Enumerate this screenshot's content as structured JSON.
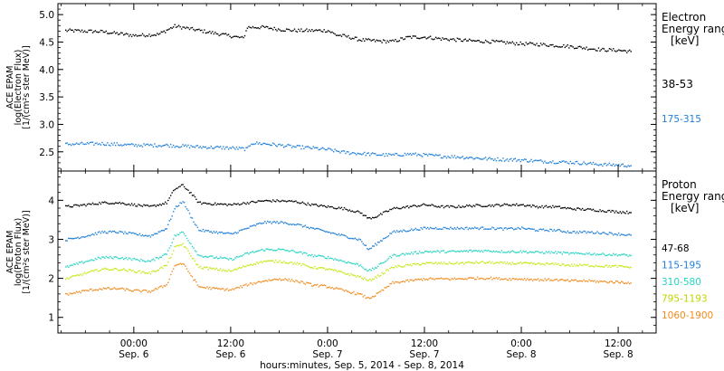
{
  "x_axis": {
    "title": "hours:minutes, Sep.  5, 2014 - Sep.  8, 2014",
    "ticks": [
      {
        "time": "00:00",
        "date": "Sep. 6",
        "hour": 24
      },
      {
        "time": "12:00",
        "date": "Sep. 6",
        "hour": 36
      },
      {
        "time": "0:00",
        "date": "Sep. 7",
        "hour": 48
      },
      {
        "time": "12:00",
        "date": "Sep. 7",
        "hour": 60
      },
      {
        "time": "0:00",
        "date": "Sep. 8",
        "hour": 72
      },
      {
        "time": "12:00",
        "date": "Sep. 8",
        "hour": 84
      }
    ],
    "xlim_hours": [
      14.6,
      88.7
    ]
  },
  "chart_data": [
    {
      "type": "scatter",
      "panel": "electron",
      "ylabel_lines": [
        "ACE EPAM",
        "log(Electron Flux)",
        "[1/(cm²s ster MeV)]"
      ],
      "ylim": [
        2.15,
        5.2
      ],
      "yticks": [
        "2.5",
        "3.0",
        "3.5",
        "4.0",
        "4.5",
        "5.0"
      ],
      "legend_title_lines": [
        "Electron",
        "Energy ranges",
        "[keV]"
      ],
      "x_units": "hours since Sep. 5, 2014 00:00",
      "series": [
        {
          "name": "38-53",
          "color": "#000000",
          "x": [
            15.5,
            20,
            24,
            27,
            29,
            31,
            34,
            36,
            37.5,
            38,
            40,
            42,
            44,
            46,
            48,
            49,
            50,
            52,
            54,
            56,
            58,
            60,
            62,
            64,
            66,
            68,
            70,
            72,
            74,
            76,
            78,
            80,
            82,
            84,
            85.5
          ],
          "y": [
            4.72,
            4.7,
            4.63,
            4.65,
            4.8,
            4.75,
            4.67,
            4.62,
            4.58,
            4.78,
            4.78,
            4.74,
            4.72,
            4.72,
            4.72,
            4.64,
            4.62,
            4.55,
            4.53,
            4.52,
            4.6,
            4.6,
            4.57,
            4.55,
            4.53,
            4.52,
            4.5,
            4.48,
            4.47,
            4.45,
            4.43,
            4.4,
            4.37,
            4.36,
            4.34
          ]
        },
        {
          "name": "175-315",
          "color": "#1f7fd9",
          "x": [
            15.5,
            20,
            24,
            28,
            32,
            36,
            38,
            38.5,
            40,
            42,
            44,
            46,
            48,
            50,
            52,
            54,
            56,
            58,
            60,
            62,
            64,
            66,
            68,
            70,
            72,
            74,
            76,
            78,
            80,
            82,
            84,
            85.5
          ],
          "y": [
            2.65,
            2.66,
            2.63,
            2.63,
            2.6,
            2.58,
            2.56,
            2.67,
            2.66,
            2.63,
            2.6,
            2.58,
            2.55,
            2.5,
            2.48,
            2.46,
            2.45,
            2.47,
            2.45,
            2.43,
            2.42,
            2.4,
            2.38,
            2.37,
            2.36,
            2.34,
            2.33,
            2.32,
            2.3,
            2.28,
            2.27,
            2.26
          ]
        }
      ]
    },
    {
      "type": "scatter",
      "panel": "proton",
      "ylabel_lines": [
        "ACE EPAM",
        "log(Proton Flux)",
        "[1/(cm²s ster MeV)]"
      ],
      "ylim": [
        0.6,
        4.75
      ],
      "yticks": [
        "1",
        "2",
        "3",
        "4"
      ],
      "legend_title_lines": [
        "Proton",
        "Energy ranges",
        "[keV]"
      ],
      "x_units": "hours since Sep. 5, 2014 00:00",
      "series": [
        {
          "name": "47-68",
          "color": "#000000",
          "x": [
            15.5,
            18,
            20,
            22,
            24,
            26,
            28,
            29,
            30,
            31,
            32,
            34,
            36,
            38,
            40,
            42,
            44,
            46,
            48,
            50,
            52,
            53,
            54,
            56,
            58,
            60,
            62,
            64,
            66,
            68,
            70,
            72,
            74,
            76,
            78,
            80,
            82,
            84,
            85.5
          ],
          "y": [
            3.85,
            3.9,
            3.95,
            3.95,
            3.9,
            3.85,
            3.95,
            4.3,
            4.4,
            4.2,
            3.95,
            3.92,
            3.9,
            3.95,
            4.0,
            4.0,
            3.98,
            3.9,
            3.85,
            3.8,
            3.7,
            3.55,
            3.6,
            3.8,
            3.85,
            3.9,
            3.85,
            3.85,
            3.88,
            3.88,
            3.9,
            3.9,
            3.85,
            3.85,
            3.8,
            3.78,
            3.75,
            3.72,
            3.7
          ]
        },
        {
          "name": "115-195",
          "color": "#1f7fd9",
          "x": [
            15.5,
            18,
            20,
            22,
            24,
            26,
            28,
            29,
            30,
            31,
            32,
            34,
            36,
            38,
            40,
            42,
            44,
            46,
            48,
            50,
            52,
            53,
            54,
            56,
            58,
            60,
            62,
            64,
            66,
            68,
            70,
            72,
            74,
            76,
            78,
            80,
            82,
            84,
            85.5
          ],
          "y": [
            3.0,
            3.1,
            3.2,
            3.2,
            3.15,
            3.1,
            3.3,
            3.8,
            4.0,
            3.6,
            3.25,
            3.2,
            3.15,
            3.3,
            3.45,
            3.45,
            3.4,
            3.3,
            3.2,
            3.1,
            3.0,
            2.75,
            2.9,
            3.2,
            3.25,
            3.3,
            3.3,
            3.3,
            3.3,
            3.3,
            3.28,
            3.3,
            3.25,
            3.25,
            3.2,
            3.2,
            3.18,
            3.15,
            3.12
          ]
        },
        {
          "name": "310-580",
          "color": "#26d4c4",
          "x": [
            15.5,
            18,
            20,
            22,
            24,
            26,
            28,
            29,
            30,
            31,
            32,
            34,
            36,
            38,
            40,
            42,
            44,
            46,
            48,
            50,
            52,
            53,
            54,
            56,
            58,
            60,
            62,
            64,
            66,
            68,
            70,
            72,
            74,
            76,
            78,
            80,
            82,
            84,
            85.5
          ],
          "y": [
            2.3,
            2.45,
            2.55,
            2.55,
            2.5,
            2.45,
            2.65,
            3.1,
            3.2,
            2.9,
            2.6,
            2.55,
            2.5,
            2.65,
            2.75,
            2.75,
            2.7,
            2.6,
            2.55,
            2.45,
            2.35,
            2.2,
            2.3,
            2.6,
            2.65,
            2.7,
            2.7,
            2.7,
            2.72,
            2.72,
            2.7,
            2.7,
            2.68,
            2.68,
            2.65,
            2.65,
            2.63,
            2.62,
            2.6
          ]
        },
        {
          "name": "795-1193",
          "color": "#c8e614",
          "x": [
            15.5,
            18,
            20,
            22,
            24,
            26,
            28,
            29,
            30,
            31,
            32,
            34,
            36,
            38,
            40,
            42,
            44,
            46,
            48,
            50,
            52,
            53,
            54,
            56,
            58,
            60,
            62,
            64,
            66,
            68,
            70,
            72,
            74,
            76,
            78,
            80,
            82,
            84,
            85.5
          ],
          "y": [
            2.0,
            2.15,
            2.25,
            2.25,
            2.2,
            2.15,
            2.35,
            2.8,
            2.9,
            2.6,
            2.3,
            2.25,
            2.2,
            2.35,
            2.45,
            2.45,
            2.4,
            2.3,
            2.25,
            2.15,
            2.05,
            1.95,
            2.05,
            2.3,
            2.35,
            2.4,
            2.4,
            2.4,
            2.42,
            2.42,
            2.4,
            2.4,
            2.38,
            2.38,
            2.35,
            2.35,
            2.33,
            2.32,
            2.3
          ]
        },
        {
          "name": "1060-1900",
          "color": "#f08c1e",
          "x": [
            15.5,
            18,
            20,
            22,
            24,
            26,
            28,
            29,
            30,
            31,
            32,
            34,
            36,
            38,
            40,
            42,
            44,
            46,
            48,
            50,
            52,
            53,
            54,
            56,
            58,
            60,
            62,
            64,
            66,
            68,
            70,
            72,
            74,
            76,
            78,
            80,
            82,
            84,
            85.5
          ],
          "y": [
            1.6,
            1.7,
            1.75,
            1.75,
            1.7,
            1.68,
            1.85,
            2.35,
            2.4,
            2.1,
            1.8,
            1.75,
            1.72,
            1.85,
            1.95,
            2.0,
            1.95,
            1.85,
            1.8,
            1.7,
            1.6,
            1.5,
            1.6,
            1.9,
            1.95,
            2.0,
            2.0,
            2.0,
            2.02,
            2.02,
            2.0,
            2.0,
            1.98,
            1.98,
            1.95,
            1.95,
            1.93,
            1.92,
            1.9
          ]
        }
      ]
    }
  ]
}
